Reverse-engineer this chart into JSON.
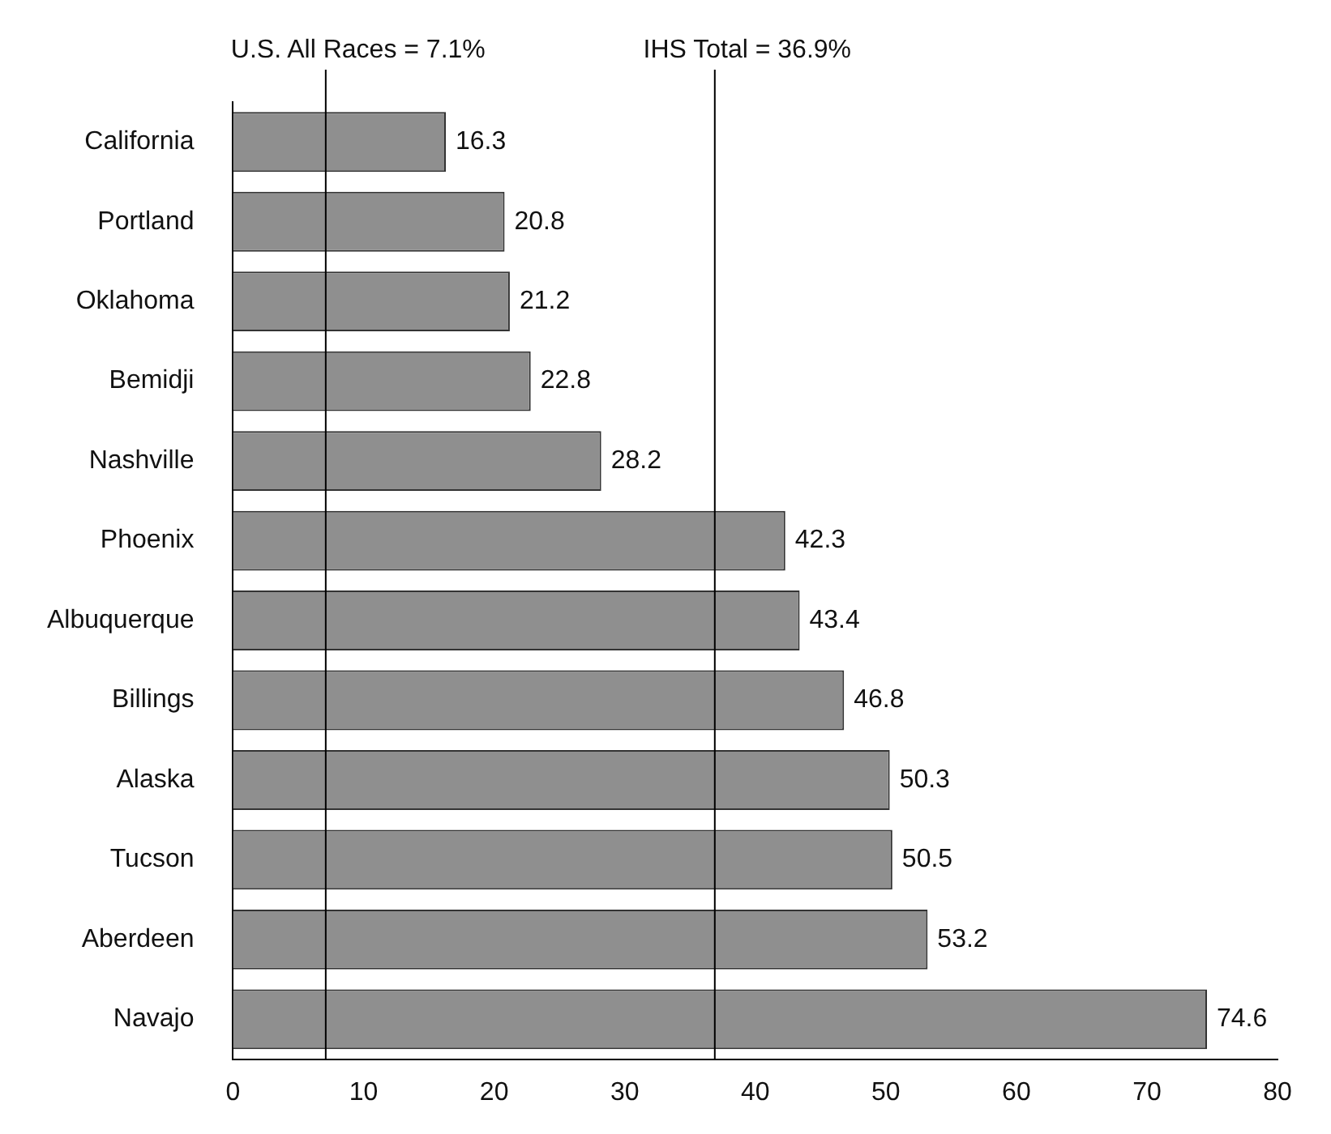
{
  "chart_data": {
    "type": "bar",
    "orientation": "horizontal",
    "categories": [
      "California",
      "Portland",
      "Oklahoma",
      "Bemidji",
      "Nashville",
      "Phoenix",
      "Albuquerque",
      "Billings",
      "Alaska",
      "Tucson",
      "Aberdeen",
      "Navajo"
    ],
    "values": [
      16.3,
      20.8,
      21.2,
      22.8,
      28.2,
      42.3,
      43.4,
      46.8,
      50.3,
      50.5,
      53.2,
      74.6
    ],
    "color": "#8f8f8f",
    "xlim": [
      0,
      80
    ],
    "xticks": [
      0,
      10,
      20,
      30,
      40,
      50,
      60,
      70,
      80
    ],
    "ref_lines": [
      {
        "axis": "x",
        "value": 7.1,
        "label": "U.S. All Races = 7.1%",
        "color": "#000000"
      },
      {
        "axis": "x",
        "value": 36.9,
        "label": "IHS Total = 36.9%",
        "color": "#000000"
      }
    ],
    "data_labels": true,
    "grid": false,
    "legend": false
  }
}
